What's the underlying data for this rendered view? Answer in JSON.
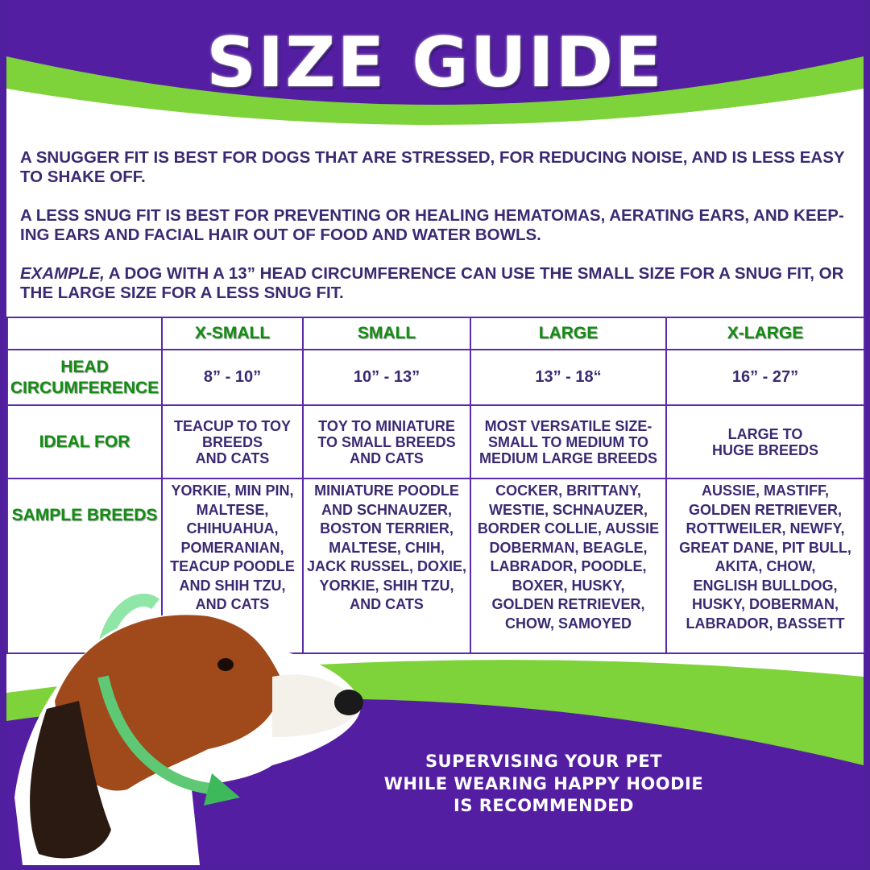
{
  "header": {
    "title": "SIZE GUIDE"
  },
  "intro": {
    "p1": "A SNUGGER FIT IS BEST FOR DOGS THAT ARE STRESSED, FOR REDUCING NOISE, AND IS LESS EASY TO SHAKE OFF.",
    "p2": "A LESS SNUG FIT IS BEST FOR PREVENTING OR HEALING HEMATOMAS, AERATING EARS, AND KEEP-ING EARS AND FACIAL HAIR OUT OF FOOD AND WATER BOWLS.",
    "example_label": "EXAMPLE,",
    "example_text": " A DOG WITH A 13” HEAD CIRCUMFERENCE CAN USE THE SMALL SIZE FOR A SNUG FIT, OR THE LARGE SIZE FOR A LESS SNUG FIT."
  },
  "table": {
    "columns": [
      "X-SMALL",
      "SMALL",
      "LARGE",
      "X-LARGE"
    ],
    "rows": [
      {
        "label": "HEAD\nCIRCUMFERENCE",
        "cells": [
          "8” - 10”",
          "10” - 13”",
          "13” - 18“",
          "16” - 27”"
        ]
      },
      {
        "label": "IDEAL FOR",
        "cells": [
          "TEACUP TO TOY\nBREEDS\nAND CATS",
          "TOY TO MINIATURE\nTO SMALL BREEDS\nAND CATS",
          "MOST VERSATILE SIZE-\nSMALL TO MEDIUM TO\nMEDIUM LARGE BREEDS",
          "LARGE TO\nHUGE BREEDS"
        ]
      },
      {
        "label": "SAMPLE BREEDS",
        "cells": [
          "YORKIE, MIN PIN,\nMALTESE,\nCHIHUAHUA,\nPOMERANIAN,\nTEACUP POODLE\nAND SHIH TZU,\nAND CATS",
          "MINIATURE POODLE\nAND SCHNAUZER,\nBOSTON TERRIER,\nMALTESE, CHIH,\nJACK RUSSEL, DOXIE,\nYORKIE, SHIH TZU,\nAND CATS",
          "COCKER, BRITTANY,\nWESTIE, SCHNAUZER,\nBORDER COLLIE, AUSSIE\nDOBERMAN, BEAGLE,\nLABRADOR, POODLE,\nBOXER, HUSKY,\nGOLDEN RETRIEVER,\nCHOW, SAMOYED",
          "AUSSIE, MASTIFF,\nGOLDEN RETRIEVER,\nROTTWEILER, NEWFY,\nGREAT DANE, PIT BULL,\nAKITA, CHOW,\nENGLISH BULLDOG,\nHUSKY, DOBERMAN,\nLABRADOR, BASSETT"
        ]
      }
    ]
  },
  "footer": {
    "note": "SUPERVISING YOUR PET\nWHILE WEARING HAPPY HOODIE\nIS RECOMMENDED"
  },
  "colors": {
    "purple": "#541ea3",
    "green": "#7ed23a",
    "label_green": "#148c14",
    "text": "#3b2a72"
  }
}
